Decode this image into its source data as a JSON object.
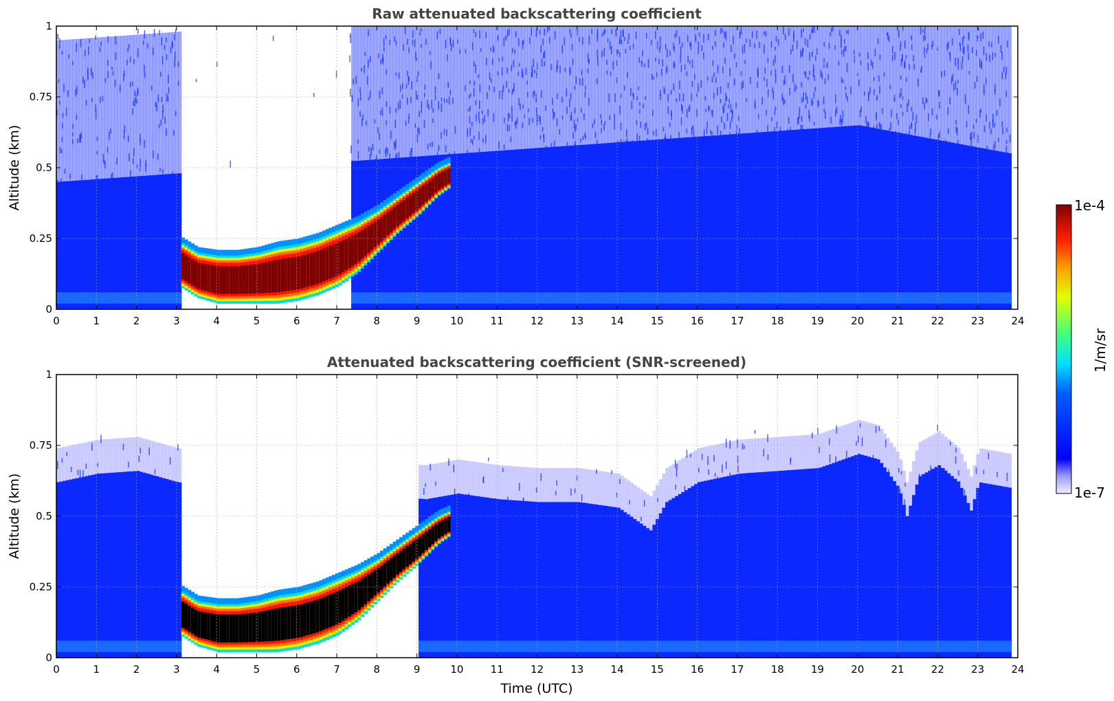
{
  "colorbar": {
    "max_label": "1e-4",
    "min_label": "1e-7",
    "unit_label": "1/m/sr",
    "colormap": "jet",
    "scale": "log",
    "range": [
      1e-07,
      0.0001
    ]
  },
  "colors": {
    "cloud_core_raw": "#7f0000",
    "cloud_core_screened": "#000000",
    "background_aerosol": "#0a28ff",
    "noise_light": "#dcdcff"
  },
  "chart_data": [
    {
      "type": "heatmap",
      "title": "Raw attenuated backscattering coefficient",
      "xlabel": "",
      "ylabel": "Altitude (km)",
      "xlim": [
        0,
        24
      ],
      "ylim": [
        0,
        1
      ],
      "x_ticks": [
        "0",
        "1",
        "2",
        "3",
        "4",
        "5",
        "6",
        "7",
        "8",
        "9",
        "10",
        "11",
        "12",
        "13",
        "14",
        "15",
        "16",
        "17",
        "18",
        "19",
        "20",
        "21",
        "22",
        "23",
        "24"
      ],
      "y_ticks": [
        "0",
        "0.25",
        "0.5",
        "0.75",
        "1"
      ],
      "grid": true,
      "data_end_time": 23.8,
      "cloud_layer": {
        "times": [
          3.05,
          3.5,
          4,
          4.5,
          5,
          5.5,
          6,
          6.5,
          7,
          7.5,
          8,
          8.5,
          9,
          9.5,
          9.8
        ],
        "base_km": [
          0.08,
          0.04,
          0.02,
          0.02,
          0.02,
          0.02,
          0.03,
          0.05,
          0.08,
          0.13,
          0.2,
          0.27,
          0.33,
          0.4,
          0.43
        ],
        "top_km": [
          0.24,
          0.2,
          0.19,
          0.19,
          0.2,
          0.22,
          0.23,
          0.25,
          0.28,
          0.31,
          0.35,
          0.4,
          0.45,
          0.5,
          0.52
        ]
      },
      "clear_gap": {
        "start": 3.05,
        "end": 7.3
      },
      "noise_floor_km": [
        {
          "t": 0,
          "h": 0.45
        },
        {
          "t": 10,
          "h": 0.55
        },
        {
          "t": 20,
          "h": 0.65
        },
        {
          "t": 23.8,
          "h": 0.55
        }
      ]
    },
    {
      "type": "heatmap",
      "title": "Attenuated backscattering coefficient (SNR-screened)",
      "xlabel": "Time (UTC)",
      "ylabel": "Altitude (km)",
      "xlim": [
        0,
        24
      ],
      "ylim": [
        0,
        1
      ],
      "x_ticks": [
        "0",
        "1",
        "2",
        "3",
        "4",
        "5",
        "6",
        "7",
        "8",
        "9",
        "10",
        "11",
        "12",
        "13",
        "14",
        "15",
        "16",
        "17",
        "18",
        "19",
        "20",
        "21",
        "22",
        "23",
        "24"
      ],
      "y_ticks": [
        "0",
        "0.25",
        "0.5",
        "0.75",
        "1"
      ],
      "grid": true,
      "data_end_time": 23.8,
      "cloud_layer": {
        "times": [
          3.05,
          3.5,
          4,
          4.5,
          5,
          5.5,
          6,
          6.5,
          7,
          7.5,
          8,
          8.5,
          9,
          9.5,
          9.8
        ],
        "base_km": [
          0.08,
          0.04,
          0.02,
          0.02,
          0.02,
          0.02,
          0.03,
          0.05,
          0.08,
          0.13,
          0.2,
          0.27,
          0.33,
          0.4,
          0.43
        ],
        "top_km": [
          0.24,
          0.2,
          0.19,
          0.19,
          0.2,
          0.22,
          0.23,
          0.25,
          0.28,
          0.31,
          0.35,
          0.4,
          0.45,
          0.5,
          0.52
        ]
      },
      "clear_gap": {
        "start": 3.05,
        "end": 9.0
      },
      "signal_top_km": [
        {
          "t": 0,
          "h": 0.62
        },
        {
          "t": 1,
          "h": 0.65
        },
        {
          "t": 2,
          "h": 0.66
        },
        {
          "t": 3,
          "h": 0.62
        },
        {
          "t": 9.2,
          "h": 0.56
        },
        {
          "t": 10,
          "h": 0.58
        },
        {
          "t": 11,
          "h": 0.56
        },
        {
          "t": 12,
          "h": 0.55
        },
        {
          "t": 13,
          "h": 0.55
        },
        {
          "t": 14,
          "h": 0.53
        },
        {
          "t": 14.8,
          "h": 0.45
        },
        {
          "t": 15.2,
          "h": 0.55
        },
        {
          "t": 16,
          "h": 0.62
        },
        {
          "t": 17,
          "h": 0.65
        },
        {
          "t": 18,
          "h": 0.66
        },
        {
          "t": 19,
          "h": 0.67
        },
        {
          "t": 20,
          "h": 0.72
        },
        {
          "t": 20.5,
          "h": 0.7
        },
        {
          "t": 21,
          "h": 0.6
        },
        {
          "t": 21.2,
          "h": 0.5
        },
        {
          "t": 21.5,
          "h": 0.64
        },
        {
          "t": 22,
          "h": 0.68
        },
        {
          "t": 22.5,
          "h": 0.62
        },
        {
          "t": 22.8,
          "h": 0.52
        },
        {
          "t": 23,
          "h": 0.62
        },
        {
          "t": 23.8,
          "h": 0.6
        }
      ]
    }
  ]
}
